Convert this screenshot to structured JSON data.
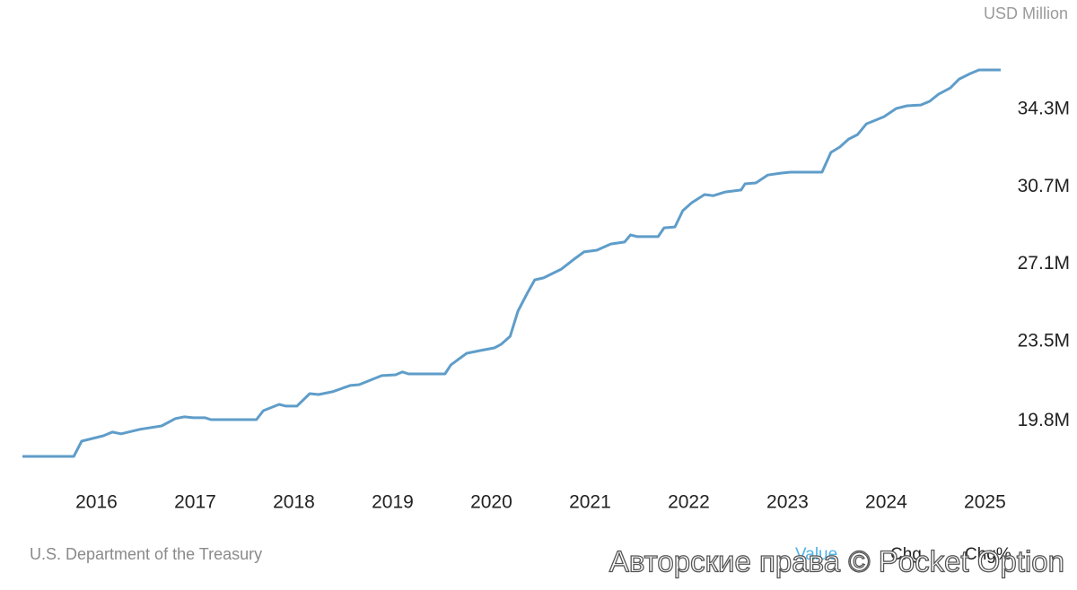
{
  "chart_data": {
    "type": "line",
    "unit": "USD Million",
    "source": "U.S. Department of the Treasury",
    "tabs": [
      "Value",
      "Chg",
      "Chg%"
    ],
    "watermark": "Авторские права © Pocket Option",
    "x": [
      2015.25,
      2015.77,
      2015.85,
      2016.07,
      2016.16,
      2016.25,
      2016.44,
      2016.66,
      2016.8,
      2016.89,
      2016.98,
      2017.1,
      2017.16,
      2017.62,
      2017.69,
      2017.85,
      2017.92,
      2018.03,
      2018.16,
      2018.25,
      2018.39,
      2018.57,
      2018.66,
      2018.89,
      2019.03,
      2019.1,
      2019.16,
      2019.53,
      2019.59,
      2019.75,
      2019.89,
      2020.03,
      2020.1,
      2020.19,
      2020.27,
      2020.36,
      2020.44,
      2020.53,
      2020.71,
      2020.85,
      2020.94,
      2021.07,
      2021.21,
      2021.35,
      2021.41,
      2021.48,
      2021.69,
      2021.75,
      2021.86,
      2021.94,
      2022.03,
      2022.16,
      2022.25,
      2022.37,
      2022.53,
      2022.57,
      2022.68,
      2022.8,
      2022.94,
      2023.03,
      2023.35,
      2023.44,
      2023.53,
      2023.62,
      2023.71,
      2023.8,
      2023.89,
      2023.98,
      2024.1,
      2024.21,
      2024.35,
      2024.44,
      2024.53,
      2024.65,
      2024.74,
      2024.85,
      2024.94,
      2025.16
    ],
    "series": [
      {
        "color": "#5f9dc9",
        "values": [
          18150000,
          18150000,
          18860000,
          19110000,
          19280000,
          19200000,
          19410000,
          19570000,
          19910000,
          19990000,
          19950000,
          19950000,
          19860000,
          19860000,
          20280000,
          20570000,
          20490000,
          20490000,
          21070000,
          21030000,
          21160000,
          21450000,
          21490000,
          21910000,
          21950000,
          22080000,
          21990000,
          21990000,
          22410000,
          22950000,
          23080000,
          23200000,
          23370000,
          23740000,
          24910000,
          25710000,
          26370000,
          26460000,
          26870000,
          27370000,
          27670000,
          27750000,
          28040000,
          28130000,
          28460000,
          28380000,
          28380000,
          28790000,
          28830000,
          29590000,
          29960000,
          30340000,
          30290000,
          30460000,
          30550000,
          30840000,
          30880000,
          31250000,
          31340000,
          31380000,
          31380000,
          32300000,
          32550000,
          32920000,
          33130000,
          33630000,
          33800000,
          33970000,
          34340000,
          34470000,
          34510000,
          34680000,
          35010000,
          35300000,
          35720000,
          35970000,
          36140000,
          36140000
        ]
      }
    ],
    "xlim": [
      2015.25,
      2025.16
    ],
    "xticks": [
      2016,
      2017,
      2018,
      2019,
      2020,
      2021,
      2022,
      2023,
      2024,
      2025
    ],
    "ylim": [
      18150000,
      36140000
    ],
    "yticks": [
      {
        "value": 19800000,
        "label": "19.8M"
      },
      {
        "value": 23500000,
        "label": "23.5M"
      },
      {
        "value": 27100000,
        "label": "27.1M"
      },
      {
        "value": 30700000,
        "label": "30.7M"
      },
      {
        "value": 34300000,
        "label": "34.3M"
      }
    ],
    "grid": false
  }
}
